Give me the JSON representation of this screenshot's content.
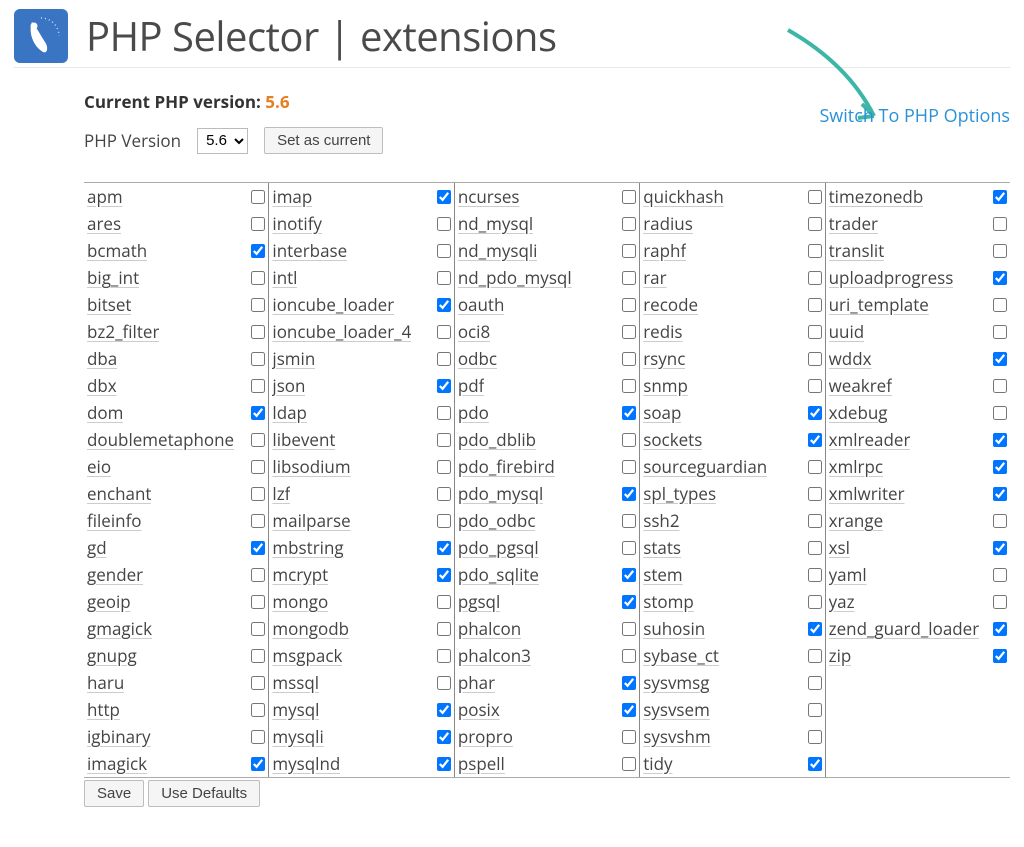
{
  "header": {
    "title": "PHP Selector | extensions"
  },
  "current_version": {
    "label": "Current PHP version:",
    "value": "5.6"
  },
  "version_selector": {
    "label": "PHP Version",
    "selected": "5.6",
    "set_button": "Set as current"
  },
  "switch_link": "Switch To PHP Options",
  "footer": {
    "save": "Save",
    "defaults": "Use Defaults"
  },
  "colors": {
    "logo_bg": "#3a75c4",
    "accent": "#e67e22",
    "link": "#2a91d6",
    "arrow": "#3db6a8"
  },
  "extensions": {
    "columns": [
      [
        {
          "name": "apm",
          "checked": false
        },
        {
          "name": "ares",
          "checked": false
        },
        {
          "name": "bcmath",
          "checked": true
        },
        {
          "name": "big_int",
          "checked": false
        },
        {
          "name": "bitset",
          "checked": false
        },
        {
          "name": "bz2_filter",
          "checked": false
        },
        {
          "name": "dba",
          "checked": false
        },
        {
          "name": "dbx",
          "checked": false
        },
        {
          "name": "dom",
          "checked": true
        },
        {
          "name": "doublemetaphone",
          "checked": false
        },
        {
          "name": "eio",
          "checked": false
        },
        {
          "name": "enchant",
          "checked": false
        },
        {
          "name": "fileinfo",
          "checked": false
        },
        {
          "name": "gd",
          "checked": true
        },
        {
          "name": "gender",
          "checked": false
        },
        {
          "name": "geoip",
          "checked": false
        },
        {
          "name": "gmagick",
          "checked": false
        },
        {
          "name": "gnupg",
          "checked": false
        },
        {
          "name": "haru",
          "checked": false
        },
        {
          "name": "http",
          "checked": false
        },
        {
          "name": "igbinary",
          "checked": false
        },
        {
          "name": "imagick",
          "checked": true
        }
      ],
      [
        {
          "name": "imap",
          "checked": true
        },
        {
          "name": "inotify",
          "checked": false
        },
        {
          "name": "interbase",
          "checked": false
        },
        {
          "name": "intl",
          "checked": false
        },
        {
          "name": "ioncube_loader",
          "checked": true
        },
        {
          "name": "ioncube_loader_4",
          "checked": false
        },
        {
          "name": "jsmin",
          "checked": false
        },
        {
          "name": "json",
          "checked": true
        },
        {
          "name": "ldap",
          "checked": false
        },
        {
          "name": "libevent",
          "checked": false
        },
        {
          "name": "libsodium",
          "checked": false
        },
        {
          "name": "lzf",
          "checked": false
        },
        {
          "name": "mailparse",
          "checked": false
        },
        {
          "name": "mbstring",
          "checked": true
        },
        {
          "name": "mcrypt",
          "checked": true
        },
        {
          "name": "mongo",
          "checked": false
        },
        {
          "name": "mongodb",
          "checked": false
        },
        {
          "name": "msgpack",
          "checked": false
        },
        {
          "name": "mssql",
          "checked": false
        },
        {
          "name": "mysql",
          "checked": true
        },
        {
          "name": "mysqli",
          "checked": true
        },
        {
          "name": "mysqlnd",
          "checked": true
        }
      ],
      [
        {
          "name": "ncurses",
          "checked": false
        },
        {
          "name": "nd_mysql",
          "checked": false
        },
        {
          "name": "nd_mysqli",
          "checked": false
        },
        {
          "name": "nd_pdo_mysql",
          "checked": false
        },
        {
          "name": "oauth",
          "checked": false
        },
        {
          "name": "oci8",
          "checked": false
        },
        {
          "name": "odbc",
          "checked": false
        },
        {
          "name": "pdf",
          "checked": false
        },
        {
          "name": "pdo",
          "checked": true
        },
        {
          "name": "pdo_dblib",
          "checked": false
        },
        {
          "name": "pdo_firebird",
          "checked": false
        },
        {
          "name": "pdo_mysql",
          "checked": true
        },
        {
          "name": "pdo_odbc",
          "checked": false
        },
        {
          "name": "pdo_pgsql",
          "checked": false
        },
        {
          "name": "pdo_sqlite",
          "checked": true
        },
        {
          "name": "pgsql",
          "checked": true
        },
        {
          "name": "phalcon",
          "checked": false
        },
        {
          "name": "phalcon3",
          "checked": false
        },
        {
          "name": "phar",
          "checked": true
        },
        {
          "name": "posix",
          "checked": true
        },
        {
          "name": "propro",
          "checked": false
        },
        {
          "name": "pspell",
          "checked": false
        }
      ],
      [
        {
          "name": "quickhash",
          "checked": false
        },
        {
          "name": "radius",
          "checked": false
        },
        {
          "name": "raphf",
          "checked": false
        },
        {
          "name": "rar",
          "checked": false
        },
        {
          "name": "recode",
          "checked": false
        },
        {
          "name": "redis",
          "checked": false
        },
        {
          "name": "rsync",
          "checked": false
        },
        {
          "name": "snmp",
          "checked": false
        },
        {
          "name": "soap",
          "checked": true
        },
        {
          "name": "sockets",
          "checked": true
        },
        {
          "name": "sourceguardian",
          "checked": false
        },
        {
          "name": "spl_types",
          "checked": false
        },
        {
          "name": "ssh2",
          "checked": false
        },
        {
          "name": "stats",
          "checked": false
        },
        {
          "name": "stem",
          "checked": false
        },
        {
          "name": "stomp",
          "checked": false
        },
        {
          "name": "suhosin",
          "checked": true
        },
        {
          "name": "sybase_ct",
          "checked": false
        },
        {
          "name": "sysvmsg",
          "checked": false
        },
        {
          "name": "sysvsem",
          "checked": false
        },
        {
          "name": "sysvshm",
          "checked": false
        },
        {
          "name": "tidy",
          "checked": true
        }
      ],
      [
        {
          "name": "timezonedb",
          "checked": true
        },
        {
          "name": "trader",
          "checked": false
        },
        {
          "name": "translit",
          "checked": false
        },
        {
          "name": "uploadprogress",
          "checked": true
        },
        {
          "name": "uri_template",
          "checked": false
        },
        {
          "name": "uuid",
          "checked": false
        },
        {
          "name": "wddx",
          "checked": true
        },
        {
          "name": "weakref",
          "checked": false
        },
        {
          "name": "xdebug",
          "checked": false
        },
        {
          "name": "xmlreader",
          "checked": true
        },
        {
          "name": "xmlrpc",
          "checked": true
        },
        {
          "name": "xmlwriter",
          "checked": true
        },
        {
          "name": "xrange",
          "checked": false
        },
        {
          "name": "xsl",
          "checked": true
        },
        {
          "name": "yaml",
          "checked": false
        },
        {
          "name": "yaz",
          "checked": false
        },
        {
          "name": "zend_guard_loader",
          "checked": true
        },
        {
          "name": "zip",
          "checked": true
        }
      ]
    ]
  }
}
